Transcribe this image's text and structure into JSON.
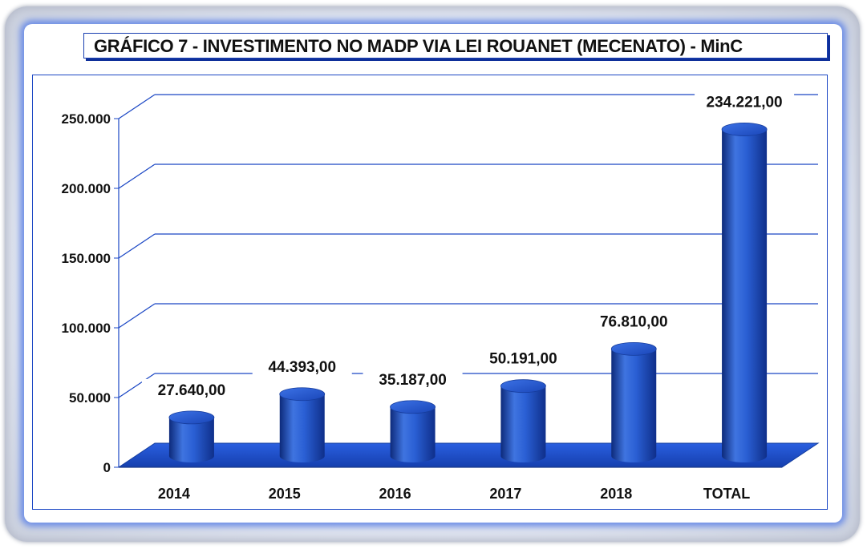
{
  "chart_data": {
    "type": "bar",
    "title": "GRÁFICO 7 - INVESTIMENTO NO MADP VIA LEI ROUANET (MECENATO) - MinC",
    "categories": [
      "2014",
      "2015",
      "2016",
      "2017",
      "2018",
      "TOTAL"
    ],
    "values": [
      27640.0,
      44393.0,
      35187.0,
      50191.0,
      76810.0,
      234221.0
    ],
    "value_labels": [
      "27.640,00",
      "44.393,00",
      "35.187,00",
      "50.191,00",
      "76.810,00",
      "234.221,00"
    ],
    "yticks": [
      0,
      50000,
      100000,
      150000,
      200000,
      250000
    ],
    "ytick_labels": [
      "0",
      "50.000",
      "100.000",
      "150.000",
      "200.000",
      "250.000"
    ],
    "ylim": [
      0,
      250000
    ],
    "xlabel": "",
    "ylabel": "",
    "grid": true,
    "style": "3d-cylinder",
    "colors": {
      "bar": "#1f4fc0",
      "bar_light": "#4f86f0",
      "bar_dark": "#0d2a7a",
      "floor": "#1b4fd0",
      "grid": "#1a46c4",
      "frame_glow": "#6f8fe6"
    }
  }
}
